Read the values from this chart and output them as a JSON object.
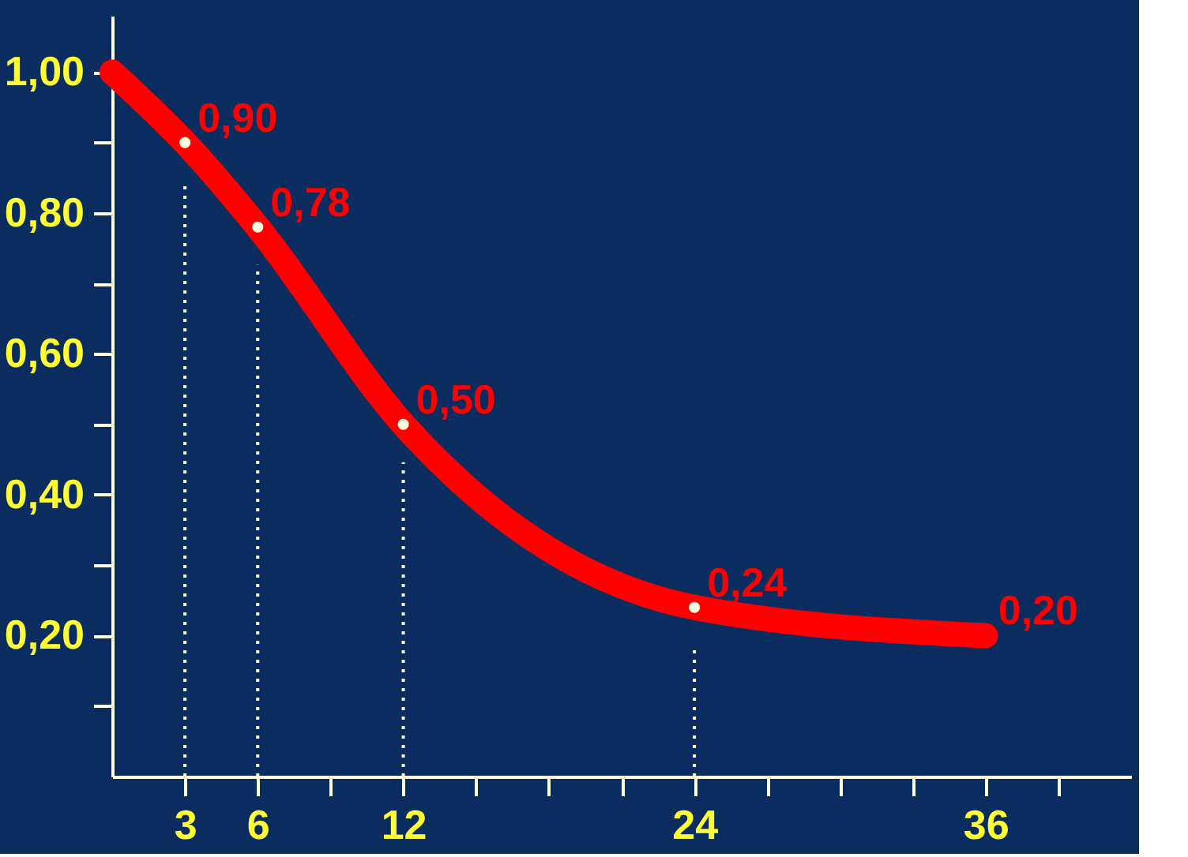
{
  "chart_data": {
    "type": "line",
    "x": [
      0,
      3,
      6,
      12,
      24,
      36
    ],
    "series": [
      {
        "color": "#ff0000",
        "values": [
          1.0,
          0.9,
          0.78,
          0.5,
          0.24,
          0.2
        ],
        "value_labels": [
          null,
          "0,90",
          "0,78",
          "0,50",
          "0,24",
          "0,20"
        ]
      },
      {
        "type": "scatter",
        "color": "#ffffe0",
        "x": [
          3,
          6,
          12,
          24
        ],
        "values": [
          0.9,
          0.78,
          0.5,
          0.24
        ],
        "marker": "circle"
      }
    ],
    "xlim": [
      0,
      42
    ],
    "xticks": [
      3,
      6,
      {
        "value": 9,
        "label": null
      },
      12,
      {
        "value": 15,
        "label": null
      },
      {
        "value": 18,
        "label": null
      },
      {
        "value": 21,
        "label": null
      },
      24,
      {
        "value": 27,
        "label": null
      },
      {
        "value": 30,
        "label": null
      },
      {
        "value": 33,
        "label": null
      },
      36,
      {
        "value": 39,
        "label": null
      }
    ],
    "ylim": [
      0,
      1.08
    ],
    "yticks": [
      {
        "value": 0.1,
        "label": null
      },
      {
        "value": 0.2,
        "label": "0,20"
      },
      {
        "value": 0.3,
        "label": null
      },
      {
        "value": 0.4,
        "label": "0,40"
      },
      {
        "value": 0.5,
        "label": null
      },
      {
        "value": 0.6,
        "label": "0,60"
      },
      {
        "value": 0.7,
        "label": null
      },
      {
        "value": 0.8,
        "label": "0,80"
      },
      {
        "value": 0.9,
        "label": null
      },
      {
        "value": 1.0,
        "label": "1,00"
      }
    ],
    "ref_lines": [
      {
        "axis": "x",
        "value": 3,
        "color": "#ffffcc",
        "line_style": "dotted"
      },
      {
        "axis": "x",
        "value": 6,
        "color": "#ffffcc",
        "line_style": "dotted"
      },
      {
        "axis": "x",
        "value": 12,
        "color": "#ffffcc",
        "line_style": "dotted"
      },
      {
        "axis": "x",
        "value": 24,
        "color": "#ffffcc",
        "line_style": "dotted"
      }
    ],
    "grid": false
  }
}
